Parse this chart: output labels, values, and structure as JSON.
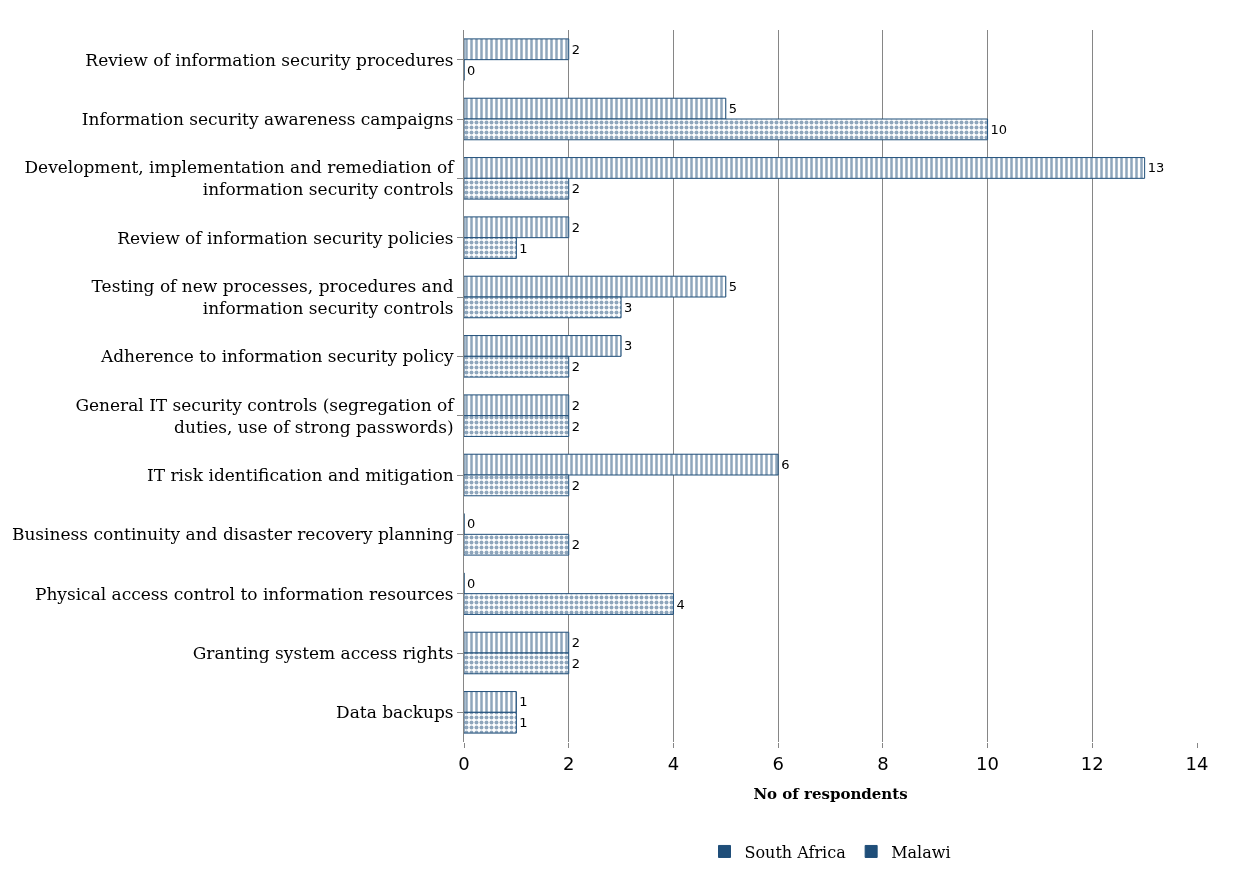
{
  "chart_data": {
    "type": "bar",
    "orientation": "horizontal",
    "xlabel": "No of respondents",
    "categories": [
      "Review of information security procedures",
      "Information security awareness campaigns",
      "Development, implementation and remediation of information security controls",
      "Review of information security policies",
      "Testing of new processes, procedures and information security controls",
      "Adherence to information security policy",
      "General IT security controls (segregation of duties, use of strong passwords)",
      "IT risk identification and mitigation",
      "Business continuity and disaster recovery planning",
      "Physical access control to information resources",
      "Granting system access rights",
      "Data backups"
    ],
    "series": [
      {
        "name": "South Africa",
        "color": "#1f4e79",
        "values": [
          2,
          5,
          13,
          2,
          5,
          3,
          2,
          6,
          0,
          0,
          2,
          1
        ]
      },
      {
        "name": "Malawi",
        "color": "#1f4e79",
        "values": [
          0,
          10,
          2,
          1,
          3,
          2,
          2,
          2,
          2,
          4,
          2,
          1
        ]
      }
    ],
    "xlim": [
      0,
      14
    ],
    "xticks": [
      0,
      2,
      4,
      6,
      8,
      10,
      12,
      14
    ],
    "grid": "x",
    "legend": "bottom",
    "data_labels": true
  }
}
